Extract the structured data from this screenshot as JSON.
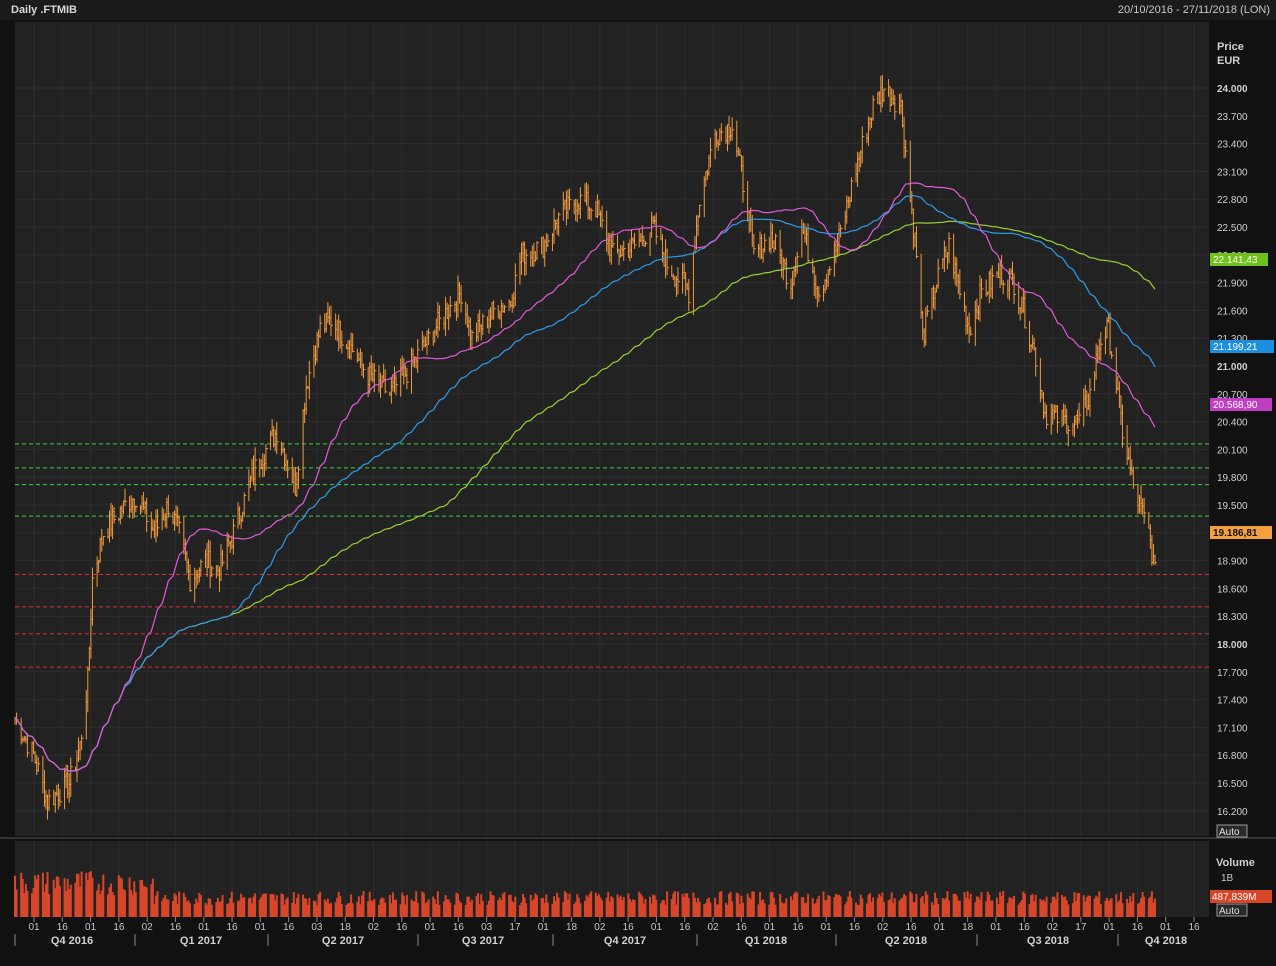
{
  "header": {
    "title": "Daily .FTMIB",
    "range": "20/10/2016 - 27/11/2018 (LON)"
  },
  "price_axis": {
    "label_line1": "Price",
    "label_line2": "EUR",
    "auto_label": "Auto"
  },
  "volume_axis": {
    "label": "Volume",
    "tick": "1B",
    "value_badge": "487,839M",
    "auto_label": "Auto"
  },
  "badges": {
    "ma200": "22.141,43",
    "ma100": "21.199,21",
    "ma50": "20.568,90",
    "last": "19.186,81"
  },
  "colors": {
    "background": "#222222",
    "grid": "#2d2d2d",
    "price": "#f09a3e",
    "ma50": "#e05ad8",
    "ma100": "#2f9ce8",
    "ma200": "#9ad034",
    "support_lines": "#3fcf3f",
    "resistance_lines": "#d63030",
    "volume": "#d8462a"
  },
  "chart_data": {
    "type": "line",
    "title": "Daily .FTMIB",
    "currency": "EUR",
    "ylim": [
      16000,
      24350
    ],
    "y_ticks": [
      "24.000",
      "23.700",
      "23.400",
      "23.100",
      "22.800",
      "22.500",
      "22.200",
      "21.900",
      "21.600",
      "21.300",
      "21.000",
      "20.700",
      "20.400",
      "20.100",
      "19.800",
      "19.500",
      "19.200",
      "18.900",
      "18.600",
      "18.300",
      "18.000",
      "17.700",
      "17.400",
      "17.100",
      "16.800",
      "16.500",
      "16.200"
    ],
    "x_day_ticks": [
      "01",
      "16",
      "01",
      "16",
      "02",
      "16",
      "01",
      "16",
      "01",
      "16",
      "03",
      "18",
      "02",
      "16",
      "01",
      "16",
      "03",
      "17",
      "01",
      "18",
      "02",
      "16",
      "01",
      "16",
      "02",
      "16",
      "01",
      "16",
      "01",
      "16",
      "02",
      "16",
      "01",
      "18",
      "01",
      "16",
      "02",
      "17",
      "01",
      "16",
      "01",
      "16"
    ],
    "x_quarter_ticks": [
      "Q4 2016",
      "Q1 2017",
      "Q2 2017",
      "Q3 2017",
      "Q4 2017",
      "Q1 2018",
      "Q2 2018",
      "Q3 2018",
      "Q4 2018"
    ],
    "price_path": [
      [
        "2016-10-20",
        17200
      ],
      [
        "2016-11-01",
        16800
      ],
      [
        "2016-11-10",
        16300
      ],
      [
        "2016-11-24",
        16500
      ],
      [
        "2016-12-01",
        16900
      ],
      [
        "2016-12-06",
        17600
      ],
      [
        "2016-12-09",
        18700
      ],
      [
        "2016-12-16",
        19200
      ],
      [
        "2016-12-30",
        19500
      ],
      [
        "2017-01-06",
        19600
      ],
      [
        "2017-01-18",
        19200
      ],
      [
        "2017-01-27",
        19500
      ],
      [
        "2017-02-03",
        19200
      ],
      [
        "2017-02-10",
        18700
      ],
      [
        "2017-02-20",
        18900
      ],
      [
        "2017-03-01",
        18800
      ],
      [
        "2017-03-10",
        19200
      ],
      [
        "2017-03-24",
        19900
      ],
      [
        "2017-04-07",
        20300
      ],
      [
        "2017-04-19",
        19700
      ],
      [
        "2017-04-26",
        20800
      ],
      [
        "2017-05-05",
        21400
      ],
      [
        "2017-05-12",
        21500
      ],
      [
        "2017-05-25",
        21200
      ],
      [
        "2017-06-05",
        20900
      ],
      [
        "2017-06-19",
        20700
      ],
      [
        "2017-07-03",
        21000
      ],
      [
        "2017-07-14",
        21300
      ],
      [
        "2017-07-26",
        21600
      ],
      [
        "2017-08-04",
        21800
      ],
      [
        "2017-08-11",
        21300
      ],
      [
        "2017-08-25",
        21600
      ],
      [
        "2017-09-05",
        21700
      ],
      [
        "2017-09-12",
        22200
      ],
      [
        "2017-09-26",
        22300
      ],
      [
        "2017-10-06",
        22600
      ],
      [
        "2017-10-18",
        22800
      ],
      [
        "2017-10-30",
        22700
      ],
      [
        "2017-11-10",
        22200
      ],
      [
        "2017-11-24",
        22300
      ],
      [
        "2017-12-06",
        22500
      ],
      [
        "2017-12-15",
        22100
      ],
      [
        "2017-12-29",
        21800
      ],
      [
        "2018-01-05",
        22800
      ],
      [
        "2018-01-15",
        23500
      ],
      [
        "2018-01-26",
        23600
      ],
      [
        "2018-02-05",
        22700
      ],
      [
        "2018-02-09",
        22200
      ],
      [
        "2018-02-20",
        22400
      ],
      [
        "2018-03-05",
        21900
      ],
      [
        "2018-03-12",
        22500
      ],
      [
        "2018-03-23",
        21800
      ],
      [
        "2018-04-04",
        22300
      ],
      [
        "2018-04-17",
        23200
      ],
      [
        "2018-04-27",
        23800
      ],
      [
        "2018-05-04",
        24000
      ],
      [
        "2018-05-15",
        23800
      ],
      [
        "2018-05-25",
        22200
      ],
      [
        "2018-05-29",
        21300
      ],
      [
        "2018-06-05",
        21800
      ],
      [
        "2018-06-15",
        22300
      ],
      [
        "2018-06-28",
        21400
      ],
      [
        "2018-07-06",
        21800
      ],
      [
        "2018-07-18",
        22000
      ],
      [
        "2018-07-27",
        21900
      ],
      [
        "2018-08-02",
        21600
      ],
      [
        "2018-08-10",
        21100
      ],
      [
        "2018-08-16",
        20500
      ],
      [
        "2018-08-30",
        20400
      ],
      [
        "2018-09-07",
        20400
      ],
      [
        "2018-09-14",
        20700
      ],
      [
        "2018-09-21",
        21300
      ],
      [
        "2018-09-26",
        21400
      ],
      [
        "2018-10-01",
        20800
      ],
      [
        "2018-10-05",
        20300
      ],
      [
        "2018-10-12",
        19700
      ],
      [
        "2018-10-22",
        19200
      ],
      [
        "2018-10-24",
        19000
      ],
      [
        "2018-10-26",
        18750
      ]
    ],
    "horizontal_levels": {
      "support_green": [
        20160,
        19900,
        19720,
        19380
      ],
      "support_red": [
        18750,
        18400,
        18110,
        17750
      ]
    },
    "moving_averages": [
      {
        "period": 50,
        "last": 20568.9
      },
      {
        "period": 100,
        "last": 21199.21
      },
      {
        "period": 200,
        "last": 22141.43
      }
    ],
    "last_price": 19186.81,
    "volume_last": "487,839M",
    "grid": true
  }
}
